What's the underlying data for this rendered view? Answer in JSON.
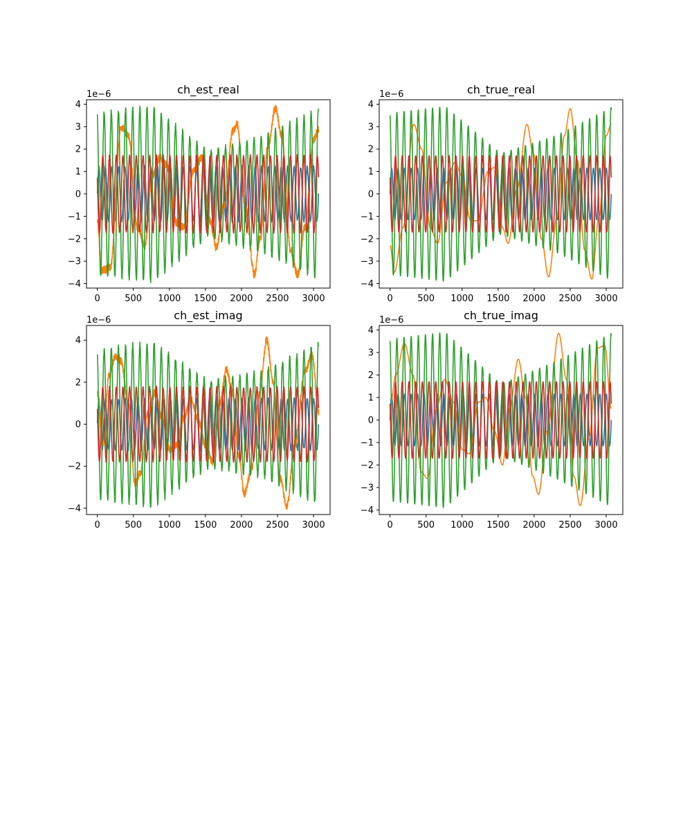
{
  "chart_data": [
    {
      "type": "line",
      "title": "ch_est_real",
      "xlabel": "",
      "ylabel": "",
      "xlim": [
        -150,
        3230
      ],
      "ylim": [
        -4.2,
        4.2
      ],
      "xticks": [
        0,
        500,
        1000,
        1500,
        2000,
        2500,
        3000
      ],
      "yticks": [
        -4,
        -3,
        -2,
        -1,
        0,
        1,
        2,
        3,
        4
      ],
      "y_offset_text": "1e−6",
      "series": [
        {
          "color": "#1f77b4",
          "amplitude": 1.2,
          "cycles": 34,
          "envelope": [
            1,
            1,
            1,
            1,
            1
          ],
          "noise": 0.08,
          "values": [
            1.1,
            -1.1
          ]
        },
        {
          "color": "#ff7f0e",
          "amplitude": 3.7,
          "cycles": 0,
          "keypoints": [
            [
              0,
              -1.2
            ],
            [
              60,
              -3.4
            ],
            [
              180,
              -3.3
            ],
            [
              330,
              3.0
            ],
            [
              430,
              2.6
            ],
            [
              560,
              -1.5
            ],
            [
              660,
              -2.3
            ],
            [
              760,
              0.8
            ],
            [
              870,
              1.6
            ],
            [
              960,
              1.3
            ],
            [
              1100,
              -1.3
            ],
            [
              1200,
              -1.5
            ],
            [
              1330,
              1.0
            ],
            [
              1450,
              1.6
            ],
            [
              1560,
              -1.2
            ],
            [
              1650,
              -2.4
            ],
            [
              1760,
              -0.5
            ],
            [
              1880,
              2.8
            ],
            [
              1940,
              3.1
            ],
            [
              2050,
              -0.5
            ],
            [
              2180,
              -3.6
            ],
            [
              2260,
              -2.0
            ],
            [
              2370,
              2.2
            ],
            [
              2470,
              3.8
            ],
            [
              2560,
              2.6
            ],
            [
              2680,
              -2.5
            ],
            [
              2780,
              -3.6
            ],
            [
              2880,
              -1.5
            ],
            [
              3000,
              2.4
            ],
            [
              3070,
              2.9
            ]
          ],
          "values": [
            3.8,
            -3.6
          ]
        },
        {
          "color": "#2ca02c",
          "amplitude": 3.9,
          "cycles": 31,
          "envelope": [
            3.6,
            3.9,
            1.9,
            2.6,
            3.8
          ],
          "noise": 0.1,
          "values": [
            3.9,
            -3.9
          ]
        },
        {
          "color": "#d62728",
          "amplitude": 1.7,
          "cycles": 33,
          "envelope": [
            1,
            1,
            1,
            1,
            1
          ],
          "noise": 0.06,
          "values": [
            1.7,
            -1.7
          ]
        }
      ]
    },
    {
      "type": "line",
      "title": "ch_true_real",
      "xlabel": "",
      "ylabel": "",
      "xlim": [
        -150,
        3230
      ],
      "ylim": [
        -4.2,
        4.2
      ],
      "xticks": [
        0,
        500,
        1000,
        1500,
        2000,
        2500,
        3000
      ],
      "yticks": [
        -4,
        -3,
        -2,
        -1,
        0,
        1,
        2,
        3,
        4
      ],
      "y_offset_text": "1e−6",
      "series": [
        {
          "color": "#1f77b4",
          "amplitude": 1.15,
          "cycles": 34,
          "envelope": [
            1,
            1,
            1,
            1,
            1
          ],
          "noise": 0,
          "values": [
            1.15,
            -1.15
          ]
        },
        {
          "color": "#ff7f0e",
          "amplitude": 3.8,
          "cycles": 0,
          "keypoints": [
            [
              0,
              -2.3
            ],
            [
              60,
              -3.5
            ],
            [
              180,
              -1.5
            ],
            [
              330,
              3.1
            ],
            [
              440,
              2.0
            ],
            [
              560,
              -1.5
            ],
            [
              660,
              -2.2
            ],
            [
              780,
              0.5
            ],
            [
              900,
              1.4
            ],
            [
              1000,
              0.8
            ],
            [
              1120,
              -1.2
            ],
            [
              1220,
              -1.2
            ],
            [
              1360,
              1.0
            ],
            [
              1460,
              1.2
            ],
            [
              1560,
              -1.5
            ],
            [
              1640,
              -2.2
            ],
            [
              1760,
              0.2
            ],
            [
              1900,
              3.1
            ],
            [
              1990,
              1.8
            ],
            [
              2100,
              -2.0
            ],
            [
              2200,
              -3.7
            ],
            [
              2320,
              -1.0
            ],
            [
              2420,
              2.6
            ],
            [
              2500,
              3.8
            ],
            [
              2600,
              1.5
            ],
            [
              2700,
              -2.5
            ],
            [
              2800,
              -3.8
            ],
            [
              2900,
              -1.0
            ],
            [
              3000,
              2.6
            ],
            [
              3070,
              3.1
            ]
          ],
          "values": [
            3.8,
            -3.8
          ]
        },
        {
          "color": "#2ca02c",
          "amplitude": 3.9,
          "cycles": 31,
          "envelope": [
            3.6,
            3.9,
            1.8,
            2.6,
            3.85
          ],
          "noise": 0,
          "values": [
            3.9,
            -3.9
          ]
        },
        {
          "color": "#d62728",
          "amplitude": 1.7,
          "cycles": 33,
          "envelope": [
            1,
            1,
            1,
            1,
            1
          ],
          "noise": 0,
          "values": [
            1.7,
            -1.7
          ]
        }
      ]
    },
    {
      "type": "line",
      "title": "ch_est_imag",
      "xlabel": "",
      "ylabel": "",
      "xlim": [
        -150,
        3230
      ],
      "ylim": [
        -4.3,
        4.7
      ],
      "xticks": [
        0,
        500,
        1000,
        1500,
        2000,
        2500,
        3000
      ],
      "yticks": [
        -4,
        -2,
        0,
        2,
        4
      ],
      "y_offset_text": "1e−6",
      "series": [
        {
          "color": "#1f77b4",
          "amplitude": 1.2,
          "cycles": 34,
          "envelope": [
            1,
            1,
            1,
            1,
            1
          ],
          "noise": 0.08,
          "values": [
            1.2,
            -1.2
          ]
        },
        {
          "color": "#ff7f0e",
          "amplitude": 4.0,
          "cycles": 0,
          "keypoints": [
            [
              0,
              1.5
            ],
            [
              80,
              -1.0
            ],
            [
              160,
              2.3
            ],
            [
              250,
              3.2
            ],
            [
              330,
              3.0
            ],
            [
              430,
              1.0
            ],
            [
              520,
              -2.8
            ],
            [
              600,
              -2.3
            ],
            [
              700,
              0.5
            ],
            [
              800,
              1.5
            ],
            [
              900,
              0.3
            ],
            [
              1000,
              -1.2
            ],
            [
              1100,
              -1.0
            ],
            [
              1200,
              0.3
            ],
            [
              1300,
              1.2
            ],
            [
              1400,
              0.2
            ],
            [
              1500,
              -1.0
            ],
            [
              1600,
              -1.8
            ],
            [
              1700,
              1.0
            ],
            [
              1790,
              2.6
            ],
            [
              1880,
              1.5
            ],
            [
              1960,
              -1.5
            ],
            [
              2040,
              -3.3
            ],
            [
              2150,
              -2.0
            ],
            [
              2250,
              1.5
            ],
            [
              2350,
              4.0
            ],
            [
              2440,
              2.0
            ],
            [
              2530,
              -2.5
            ],
            [
              2630,
              -3.9
            ],
            [
              2740,
              -1.0
            ],
            [
              2880,
              2.5
            ],
            [
              2980,
              3.3
            ],
            [
              3070,
              0.6
            ]
          ],
          "values": [
            4.0,
            -3.9
          ]
        },
        {
          "color": "#2ca02c",
          "amplitude": 3.9,
          "cycles": 31,
          "envelope": [
            3.5,
            3.9,
            2.0,
            2.5,
            3.8
          ],
          "noise": 0.15,
          "values": [
            4.3,
            -3.9
          ]
        },
        {
          "color": "#d62728",
          "amplitude": 1.75,
          "cycles": 33,
          "envelope": [
            1,
            1,
            1,
            1,
            1
          ],
          "noise": 0.06,
          "values": [
            1.8,
            -1.8
          ]
        }
      ]
    },
    {
      "type": "line",
      "title": "ch_true_imag",
      "xlabel": "",
      "ylabel": "",
      "xlim": [
        -150,
        3230
      ],
      "ylim": [
        -4.2,
        4.2
      ],
      "xticks": [
        0,
        500,
        1000,
        1500,
        2000,
        2500,
        3000
      ],
      "yticks": [
        -4,
        -3,
        -2,
        -1,
        0,
        1,
        2,
        3,
        4
      ],
      "y_offset_text": "1e−6",
      "series": [
        {
          "color": "#1f77b4",
          "amplitude": 1.15,
          "cycles": 34,
          "envelope": [
            1,
            1,
            1,
            1,
            1
          ],
          "noise": 0,
          "values": [
            1.15,
            -1.15
          ]
        },
        {
          "color": "#ff7f0e",
          "amplitude": 3.9,
          "cycles": 0,
          "keypoints": [
            [
              0,
              0.5
            ],
            [
              80,
              2.0
            ],
            [
              200,
              3.4
            ],
            [
              320,
              2.0
            ],
            [
              430,
              -2.3
            ],
            [
              520,
              -2.6
            ],
            [
              640,
              0.5
            ],
            [
              760,
              1.8
            ],
            [
              880,
              0.8
            ],
            [
              1000,
              -1.3
            ],
            [
              1100,
              -1.5
            ],
            [
              1230,
              0.8
            ],
            [
              1330,
              1.0
            ],
            [
              1450,
              -0.5
            ],
            [
              1560,
              -2.0
            ],
            [
              1660,
              0.5
            ],
            [
              1780,
              2.7
            ],
            [
              1880,
              1.0
            ],
            [
              1980,
              -2.5
            ],
            [
              2060,
              -3.3
            ],
            [
              2180,
              -0.5
            ],
            [
              2340,
              3.85
            ],
            [
              2450,
              1.8
            ],
            [
              2550,
              -2.5
            ],
            [
              2640,
              -3.8
            ],
            [
              2760,
              -0.8
            ],
            [
              2880,
              3.2
            ],
            [
              2980,
              3.3
            ],
            [
              3070,
              0.5
            ]
          ],
          "values": [
            3.9,
            -3.8
          ]
        },
        {
          "color": "#2ca02c",
          "amplitude": 3.9,
          "cycles": 31,
          "envelope": [
            3.6,
            3.9,
            1.6,
            2.6,
            3.85
          ],
          "noise": 0,
          "values": [
            3.9,
            -3.9
          ]
        },
        {
          "color": "#d62728",
          "amplitude": 1.7,
          "cycles": 33,
          "envelope": [
            1,
            1,
            1,
            1,
            1
          ],
          "noise": 0,
          "values": [
            1.7,
            -1.7
          ]
        }
      ]
    }
  ]
}
